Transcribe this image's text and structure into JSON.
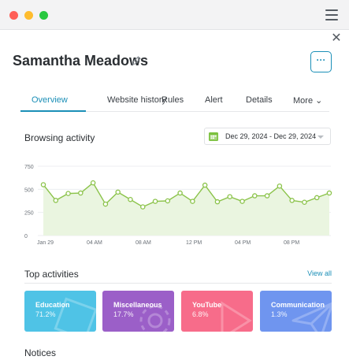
{
  "window": {
    "controls": [
      "close",
      "minimize",
      "maximize"
    ]
  },
  "profile": {
    "name": "Samantha Meadows",
    "more_label": "···"
  },
  "tabs": [
    {
      "label": "Overview",
      "active": true
    },
    {
      "label": "Website history",
      "active": false
    },
    {
      "label": "Rules",
      "active": false
    },
    {
      "label": "Alert",
      "active": false
    },
    {
      "label": "Details",
      "active": false
    },
    {
      "label": "More ⌄",
      "active": false
    }
  ],
  "browsing": {
    "title": "Browsing activity",
    "date_range": "Dec 29, 2024 - Dec 29, 2024"
  },
  "chart_data": {
    "type": "area",
    "title": "",
    "xlabel": "",
    "ylabel": "",
    "ylim": [
      0,
      750
    ],
    "yticks": [
      0,
      250,
      500,
      750
    ],
    "ytick_labels": [
      "0",
      "250",
      "500",
      "750"
    ],
    "xtick_labels": [
      "Jan 29",
      "04 AM",
      "08 AM",
      "12 PM",
      "04 PM",
      "08 PM"
    ],
    "grid": true,
    "colors": {
      "line": "#8bc34a",
      "fill": "#eaf5e0"
    },
    "series": [
      {
        "values": [
          550,
          380,
          455,
          460,
          570,
          340,
          470,
          390,
          310,
          370,
          375,
          460,
          370,
          545,
          365,
          420,
          370,
          430,
          430,
          535,
          380,
          360,
          410,
          460
        ]
      }
    ]
  },
  "activities": {
    "title": "Top activities",
    "view_all": "View all",
    "items": [
      {
        "name": "Education",
        "value": "71.2%",
        "color": "#4fc3e6"
      },
      {
        "name": "Miscellaneous",
        "value": "17.7%",
        "color": "#9b5fc8"
      },
      {
        "name": "YouTube",
        "value": "6.8%",
        "color": "#f76c8a"
      },
      {
        "name": "Communication",
        "value": "1.3%",
        "color": "#6f95ef"
      }
    ]
  },
  "notices": {
    "title": "Notices"
  }
}
